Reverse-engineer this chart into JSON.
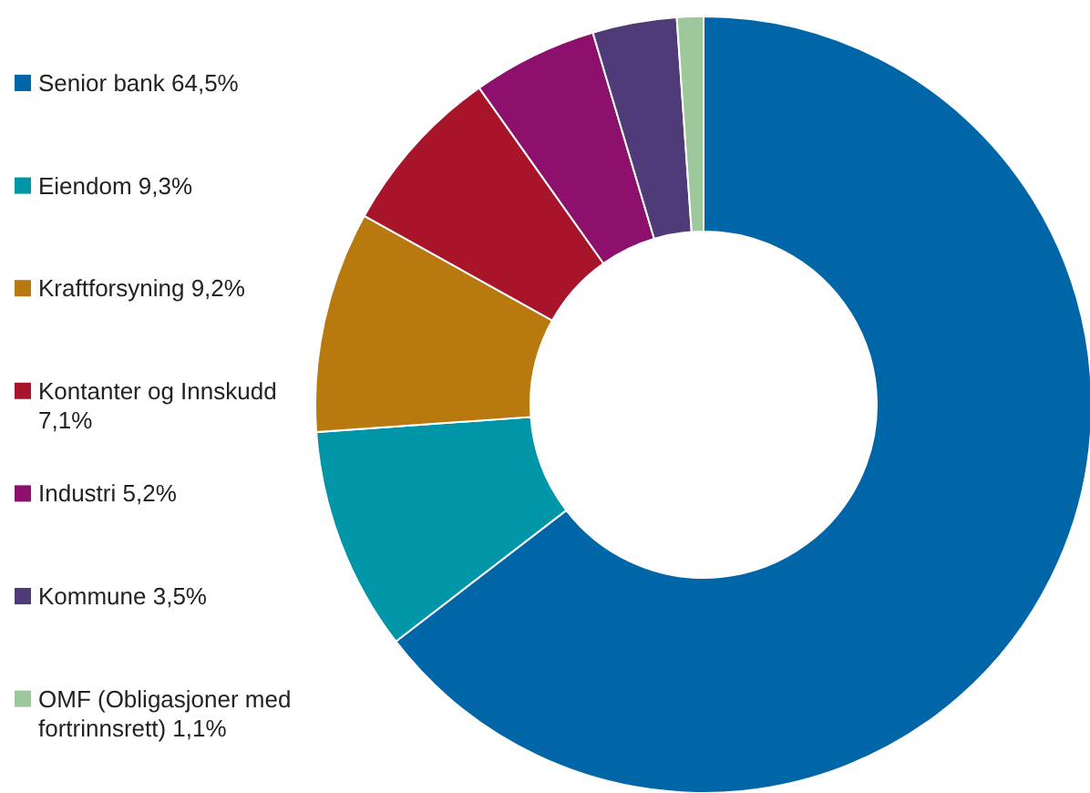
{
  "chart_data": {
    "type": "donut",
    "legend": "left",
    "categories": [
      "Senior bank 64,5%",
      "Eiendom 9,3%",
      "Kraftforsyning 9,2%",
      "Kontanter og Innskudd 7,1%",
      "Industri 5,2%",
      "Kommune 3,5%",
      "OMF (Obligasjoner med fortrinnsrett) 1,1%"
    ],
    "values": [
      64.5,
      9.3,
      9.2,
      7.1,
      5.2,
      3.5,
      1.1
    ],
    "colors": [
      "#0066a8",
      "#0096a8",
      "#b8790f",
      "#a8142a",
      "#8c106c",
      "#4f3b78",
      "#9cc89c"
    ]
  }
}
